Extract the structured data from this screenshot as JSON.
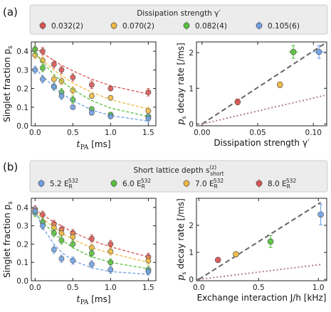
{
  "panels": [
    {
      "label": "(a)",
      "legend": {
        "title": "Dissipation strength γ′",
        "entries": [
          "0.032(2)",
          "0.070(2)",
          "0.082(4)",
          "0.105(6)"
        ],
        "colors": [
          "#d9534f",
          "#f0b840",
          "#55c23a",
          "#6fa0e6"
        ]
      }
    },
    {
      "label": "(b)",
      "legend": {
        "title": "Short lattice depth s",
        "title_sup": "(z)",
        "title_sub": "short",
        "entries": [
          "5.2 E",
          "6.0 E",
          "7.0 E",
          "8.0 E"
        ],
        "entry_sub": "R",
        "entry_sup": "532",
        "colors": [
          "#6fa0e6",
          "#55c23a",
          "#f0b840",
          "#d9534f"
        ]
      }
    }
  ],
  "chart_data": [
    {
      "id": "a-left",
      "type": "scatter",
      "xlabel": "t",
      "xlabel_sub": "PA",
      "xlabel_unit": " [ms]",
      "ylabel": "Singlet fraction p",
      "ylabel_sub": "s",
      "xlim": [
        -0.05,
        1.6
      ],
      "ylim": [
        0.0,
        0.45
      ],
      "xticks": [
        0.0,
        0.5,
        1.0,
        1.5
      ],
      "xtick_labels": [
        "0.0",
        "0.5",
        "1.0",
        "1.5"
      ],
      "yticks": [
        0.0,
        0.1,
        0.2,
        0.3,
        0.4
      ],
      "ytick_labels": [
        "0.0",
        "0.1",
        "0.2",
        "0.3",
        "0.4"
      ],
      "series": [
        {
          "color": "#d9534f",
          "x": [
            0,
            0.1,
            0.25,
            0.35,
            0.5,
            0.75,
            1.0,
            1.5
          ],
          "y": [
            0.41,
            0.4,
            0.33,
            0.3,
            0.26,
            0.22,
            0.2,
            0.18
          ],
          "err": [
            0.02,
            0.02,
            0.02,
            0.02,
            0.02,
            0.02,
            0.01,
            0.02
          ],
          "fit": [
            0.42,
            0.39,
            0.35,
            0.325,
            0.295,
            0.25,
            0.215,
            0.17
          ]
        },
        {
          "color": "#f0b840",
          "x": [
            0,
            0.1,
            0.25,
            0.35,
            0.5,
            0.75,
            1.0,
            1.5
          ],
          "y": [
            0.38,
            0.35,
            0.25,
            0.24,
            0.19,
            0.16,
            0.15,
            0.08
          ],
          "err": [
            0.02,
            0.02,
            0.02,
            0.02,
            0.02,
            0.01,
            0.01,
            0.02
          ],
          "fit": [
            0.39,
            0.35,
            0.3,
            0.27,
            0.23,
            0.18,
            0.14,
            0.09
          ]
        },
        {
          "color": "#55c23a",
          "x": [
            0,
            0.1,
            0.25,
            0.35,
            0.5,
            0.75,
            1.0,
            1.5
          ],
          "y": [
            0.41,
            0.31,
            0.21,
            0.18,
            0.14,
            0.09,
            0.06,
            0.05
          ],
          "err": [
            0.02,
            0.02,
            0.02,
            0.02,
            0.02,
            0.01,
            0.01,
            0.01
          ],
          "fit": [
            0.39,
            0.34,
            0.275,
            0.24,
            0.195,
            0.135,
            0.095,
            0.05
          ]
        },
        {
          "color": "#6fa0e6",
          "x": [
            0,
            0.1,
            0.25,
            0.35,
            0.5,
            0.75,
            1.0,
            1.5
          ],
          "y": [
            0.3,
            0.25,
            0.21,
            0.16,
            0.1,
            0.07,
            0.05,
            0.04
          ],
          "err": [
            0.02,
            0.02,
            0.02,
            0.02,
            0.01,
            0.01,
            0.01,
            0.02
          ],
          "fit": [
            0.31,
            0.265,
            0.21,
            0.175,
            0.135,
            0.085,
            0.055,
            0.025
          ]
        }
      ]
    },
    {
      "id": "a-right",
      "type": "scatter",
      "xlabel": "Dissipation strength γ′",
      "ylabel": "decay rate [/ms]",
      "ylabel_prefix": "p",
      "ylabel_sub": "s",
      "xlim": [
        -0.005,
        0.112
      ],
      "ylim": [
        -0.05,
        2.3
      ],
      "xticks": [
        0.0,
        0.05,
        0.1
      ],
      "xtick_labels": [
        "0.00",
        "0.05",
        "0.10"
      ],
      "yticks": [
        0,
        1,
        2
      ],
      "ytick_labels": [
        "0",
        "1",
        "2"
      ],
      "points": [
        {
          "x": 0.032,
          "y": 0.62,
          "xerr": 0.002,
          "yerr": 0.08,
          "color": "#d9534f"
        },
        {
          "x": 0.07,
          "y": 1.1,
          "xerr": 0.002,
          "yerr": 0.08,
          "color": "#f0b840"
        },
        {
          "x": 0.082,
          "y": 2.02,
          "xerr": 0.004,
          "yerr": 0.18,
          "color": "#55c23a"
        },
        {
          "x": 0.105,
          "y": 2.02,
          "xerr": 0.006,
          "yerr": 0.18,
          "color": "#6fa0e6"
        }
      ],
      "dashed_line": {
        "x": [
          0.0,
          0.11
        ],
        "y": [
          0.0,
          2.25
        ],
        "color": "#666666"
      },
      "dotted_line": {
        "x": [
          0.0,
          0.11
        ],
        "y": [
          0.0,
          0.8
        ],
        "color": "#b07c90"
      }
    },
    {
      "id": "b-left",
      "type": "scatter",
      "xlabel": "t",
      "xlabel_sub": "PA",
      "xlabel_unit": " [ms]",
      "ylabel": "Singlet fraction p",
      "ylabel_sub": "s",
      "xlim": [
        -0.05,
        1.6
      ],
      "ylim": [
        0.0,
        0.45
      ],
      "xticks": [
        0.0,
        0.5,
        1.0,
        1.5
      ],
      "xtick_labels": [
        "0.0",
        "0.5",
        "1.0",
        "1.5"
      ],
      "yticks": [
        0.0,
        0.1,
        0.2,
        0.3,
        0.4
      ],
      "ytick_labels": [
        "0.0",
        "0.1",
        "0.2",
        "0.3",
        "0.4"
      ],
      "series": [
        {
          "color": "#d9534f",
          "x": [
            0,
            0.1,
            0.25,
            0.35,
            0.5,
            0.75,
            1.0,
            1.5
          ],
          "y": [
            0.39,
            0.36,
            0.31,
            0.28,
            0.26,
            0.23,
            0.2,
            0.13
          ],
          "err": [
            0.02,
            0.02,
            0.02,
            0.02,
            0.02,
            0.02,
            0.02,
            0.02
          ],
          "fit": [
            0.39,
            0.36,
            0.32,
            0.3,
            0.265,
            0.22,
            0.185,
            0.13
          ]
        },
        {
          "color": "#f0b840",
          "x": [
            0,
            0.1,
            0.25,
            0.35,
            0.5,
            0.75,
            1.0,
            1.5
          ],
          "y": [
            0.38,
            0.32,
            0.29,
            0.26,
            0.24,
            0.18,
            0.16,
            0.11
          ],
          "err": [
            0.02,
            0.02,
            0.02,
            0.02,
            0.02,
            0.02,
            0.02,
            0.02
          ],
          "fit": [
            0.38,
            0.34,
            0.29,
            0.26,
            0.225,
            0.18,
            0.15,
            0.1
          ]
        },
        {
          "color": "#55c23a",
          "x": [
            0,
            0.1,
            0.25,
            0.35,
            0.5,
            0.75,
            1.0,
            1.5
          ],
          "y": [
            0.37,
            0.32,
            0.26,
            0.22,
            0.2,
            0.15,
            0.1,
            0.06
          ],
          "err": [
            0.02,
            0.02,
            0.02,
            0.02,
            0.02,
            0.02,
            0.02,
            0.02
          ],
          "fit": [
            0.37,
            0.32,
            0.26,
            0.225,
            0.18,
            0.13,
            0.1,
            0.065
          ]
        },
        {
          "color": "#6fa0e6",
          "x": [
            0,
            0.1,
            0.25,
            0.35,
            0.5,
            0.75,
            1.0,
            1.5
          ],
          "y": [
            0.38,
            0.3,
            0.17,
            0.12,
            0.11,
            0.09,
            0.06,
            0.05
          ],
          "err": [
            0.02,
            0.02,
            0.02,
            0.02,
            0.02,
            0.02,
            0.02,
            0.02
          ],
          "fit": [
            0.38,
            0.29,
            0.2,
            0.155,
            0.11,
            0.07,
            0.05,
            0.035
          ]
        }
      ]
    },
    {
      "id": "b-right",
      "type": "scatter",
      "xlabel": "Exchange interaction J/h [kHz]",
      "ylabel": "decay rate [/ms]",
      "ylabel_prefix": "p",
      "ylabel_sub": "s",
      "xlim": [
        -0.02,
        1.07
      ],
      "ylim": [
        -0.05,
        3.0
      ],
      "xticks": [
        0.0,
        0.5,
        1.0
      ],
      "xtick_labels": [
        "0.0",
        "0.5",
        "1.0"
      ],
      "yticks": [
        0,
        1,
        2
      ],
      "ytick_labels": [
        "0",
        "1",
        "2"
      ],
      "points": [
        {
          "x": 0.16,
          "y": 0.72,
          "xerr": 0,
          "yerr": 0.08,
          "color": "#d9534f"
        },
        {
          "x": 0.31,
          "y": 0.93,
          "xerr": 0,
          "yerr": 0.08,
          "color": "#f0b840"
        },
        {
          "x": 0.6,
          "y": 1.4,
          "xerr": 0,
          "yerr": 0.22,
          "color": "#55c23a"
        },
        {
          "x": 1.02,
          "y": 2.4,
          "xerr": 0,
          "yerr": 0.38,
          "color": "#6fa0e6"
        }
      ],
      "dashed_line": {
        "x": [
          0.0,
          1.02
        ],
        "y": [
          0.0,
          2.85
        ],
        "color": "#666666"
      },
      "dotted_line": {
        "x": [
          0.0,
          1.02
        ],
        "y": [
          0.0,
          0.55
        ],
        "color": "#b07c90"
      }
    }
  ]
}
